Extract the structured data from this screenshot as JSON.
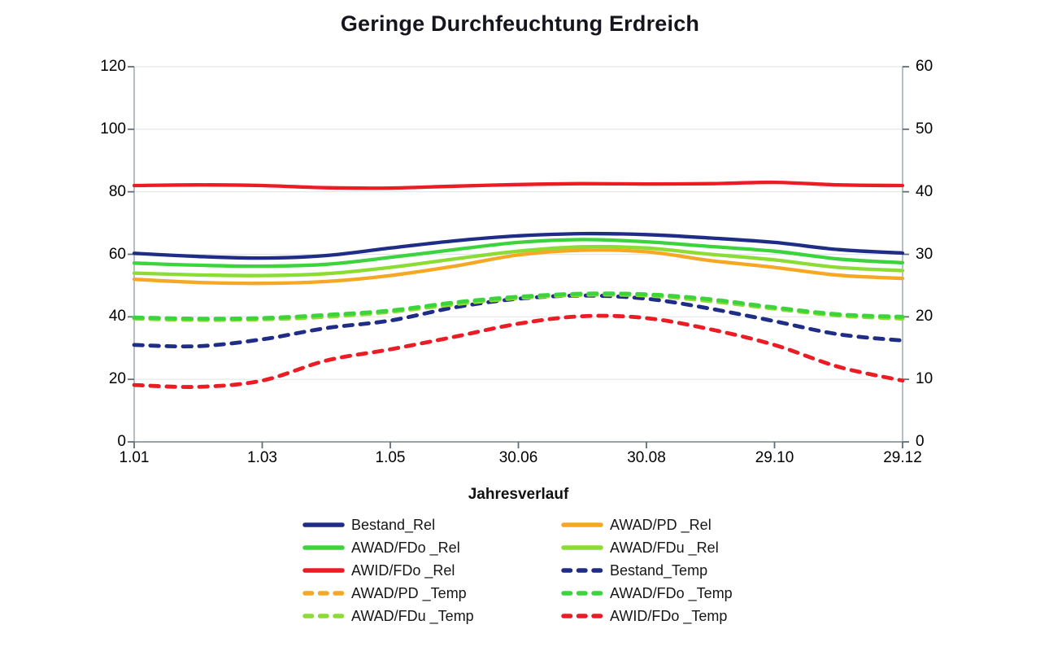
{
  "chart_data": {
    "type": "line",
    "title": "Geringe Durchfeuchtung Erdreich",
    "xlabel": "Jahresverlauf",
    "x_ticks": [
      "1.01",
      "1.03",
      "1.05",
      "30.06",
      "30.08",
      "29.10",
      "29.12"
    ],
    "y_left": {
      "label": "",
      "min": 0,
      "max": 120,
      "ticks": [
        0,
        20,
        40,
        60,
        80,
        100,
        120
      ]
    },
    "y_right": {
      "label": "",
      "min": 0,
      "max": 60,
      "ticks": [
        0,
        10,
        20,
        30,
        40,
        50,
        60
      ]
    },
    "grid": "horizontal-faint",
    "legend_position": "bottom-two-columns",
    "sampling": "13 evenly spaced points across x-axis (values estimated from plot)",
    "series": [
      {
        "name": "Bestand_Rel",
        "axis": "left",
        "style": "solid",
        "color": "#1F2D87",
        "values": [
          60.3,
          59.3,
          58.8,
          59.6,
          62.0,
          64.3,
          65.9,
          66.6,
          66.3,
          65.2,
          63.8,
          61.5,
          60.4
        ]
      },
      {
        "name": "AWAD/PD _Rel",
        "axis": "left",
        "style": "solid",
        "color": "#F6A723",
        "values": [
          52.0,
          51.0,
          50.7,
          51.3,
          53.2,
          56.2,
          59.8,
          61.3,
          60.8,
          58.0,
          55.8,
          53.3,
          52.3
        ]
      },
      {
        "name": "AWAD/FDo _Rel",
        "axis": "left",
        "style": "solid",
        "color": "#3CD43C",
        "values": [
          57.2,
          56.5,
          56.2,
          56.8,
          59.0,
          61.5,
          63.8,
          64.7,
          64.0,
          62.5,
          61.0,
          58.5,
          57.3
        ]
      },
      {
        "name": "AWAD/FDu _Rel",
        "axis": "left",
        "style": "solid",
        "color": "#8BDC33",
        "values": [
          54.0,
          53.4,
          53.2,
          53.8,
          55.8,
          58.5,
          61.0,
          62.4,
          62.0,
          60.0,
          58.2,
          55.8,
          54.8
        ]
      },
      {
        "name": "AWID/FDo _Rel",
        "axis": "left",
        "style": "solid",
        "color": "#EC1C24",
        "values": [
          82.0,
          82.2,
          82.0,
          81.3,
          81.2,
          81.8,
          82.3,
          82.6,
          82.5,
          82.6,
          83.0,
          82.2,
          82.0
        ]
      },
      {
        "name": "Bestand_Temp",
        "axis": "right",
        "style": "dashed",
        "color": "#1F2D87",
        "values": [
          15.5,
          15.3,
          16.4,
          18.2,
          19.4,
          21.5,
          22.9,
          23.4,
          22.9,
          21.3,
          19.3,
          17.2,
          16.2
        ]
      },
      {
        "name": "AWAD/PD _Temp",
        "axis": "right",
        "style": "dashed",
        "color": "#F6A723",
        "values": [
          19.8,
          19.6,
          19.7,
          20.2,
          20.9,
          22.2,
          23.1,
          23.6,
          23.5,
          22.7,
          21.4,
          20.3,
          19.9
        ]
      },
      {
        "name": "AWAD/FDo _Temp",
        "axis": "right",
        "style": "dashed",
        "color": "#3CD43C",
        "values": [
          19.9,
          19.7,
          19.8,
          20.3,
          21.0,
          22.3,
          23.2,
          23.7,
          23.6,
          22.8,
          21.5,
          20.4,
          20.0
        ]
      },
      {
        "name": "AWAD/FDu _Temp",
        "axis": "right",
        "style": "dashed",
        "color": "#8BDC33",
        "values": [
          19.7,
          19.5,
          19.6,
          20.0,
          20.8,
          22.0,
          23.0,
          23.5,
          23.4,
          22.5,
          21.3,
          20.2,
          19.7
        ]
      },
      {
        "name": "AWID/FDo _Temp",
        "axis": "right",
        "style": "dashed",
        "color": "#EC1C24",
        "values": [
          9.1,
          8.8,
          9.8,
          13.0,
          14.8,
          16.8,
          18.9,
          20.1,
          19.8,
          18.0,
          15.5,
          12.0,
          9.8
        ]
      }
    ],
    "legend_items": [
      "Bestand_Rel",
      "AWAD/PD _Rel",
      "AWAD/FDo _Rel",
      "AWAD/FDu _Rel",
      "AWID/FDo _Rel",
      "Bestand_Temp",
      "AWAD/PD _Temp",
      "AWAD/FDo _Temp",
      "AWAD/FDu _Temp",
      "AWID/FDo _Temp"
    ],
    "draw_order": [
      "AWAD/PD _Temp",
      "Bestand_Temp",
      "AWAD/FDu _Temp",
      "AWAD/FDo _Temp",
      "AWID/FDo _Temp",
      "AWAD/PD _Rel",
      "AWAD/FDu _Rel",
      "AWAD/FDo _Rel",
      "Bestand_Rel",
      "AWID/FDo _Rel"
    ],
    "axis_colors": {
      "frame": "#A3AFB6",
      "bottom": "#8A969C",
      "tick": "#5F6E76",
      "grid": "#E3E7E9"
    }
  }
}
